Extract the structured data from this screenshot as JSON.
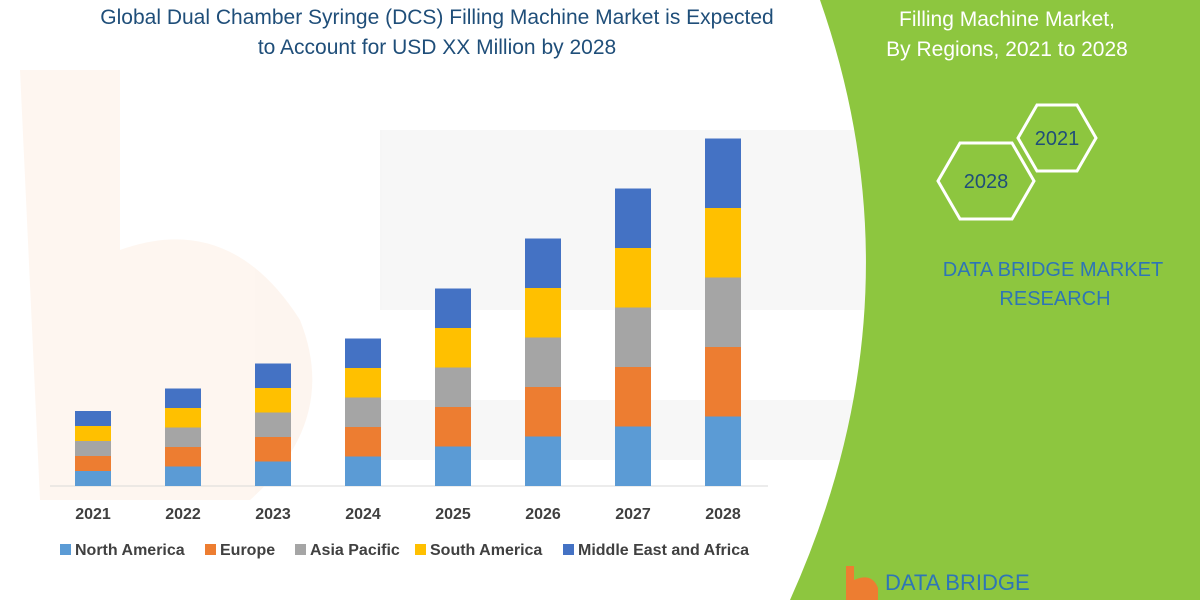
{
  "colors": {
    "north_america": "#5B9BD5",
    "europe": "#ED7D31",
    "asia_pacific": "#A5A5A5",
    "south_america": "#FFC000",
    "middle_east_africa": "#4472C4",
    "side_panel": "#8DC63F",
    "title_text": "#1F4E79",
    "brand_text": "#2E75B6"
  },
  "brand": {
    "logo_text": "DATA BRIDGE"
  },
  "side_panel": {
    "title_lines": [
      "Filling Machine Market,",
      "By Regions, 2021 to 2028"
    ],
    "hex_year_top": "2021",
    "hex_year_bottom": "2028",
    "company_line1": "DATA BRIDGE MARKET",
    "company_line2": "RESEARCH"
  },
  "chart_data": {
    "type": "bar",
    "stacked": true,
    "title": "Global Dual Chamber Syringe (DCS) Filling Machine Market is Expected to Account for USD XX Million by 2028",
    "title_lines": [
      "Global Dual Chamber Syringe (DCS) Filling Machine Market is Expected",
      "to Account for USD XX Million by 2028"
    ],
    "categories": [
      "2021",
      "2022",
      "2023",
      "2024",
      "2025",
      "2026",
      "2027",
      "2028"
    ],
    "series": [
      {
        "name": "North America",
        "color": "#5B9BD5",
        "values": [
          15,
          19.5,
          24.5,
          29.5,
          39.5,
          49.5,
          59.5,
          69.5
        ]
      },
      {
        "name": "Europe",
        "color": "#ED7D31",
        "values": [
          15,
          19.5,
          24.5,
          29.5,
          39.5,
          49.5,
          59.5,
          69.5
        ]
      },
      {
        "name": "Asia Pacific",
        "color": "#A5A5A5",
        "values": [
          15,
          19.5,
          24.5,
          29.5,
          39.5,
          49.5,
          59.5,
          69.5
        ]
      },
      {
        "name": "South America",
        "color": "#FFC000",
        "values": [
          15,
          19.5,
          24.5,
          29.5,
          39.5,
          49.5,
          59.5,
          69.5
        ]
      },
      {
        "name": "Middle East and Africa",
        "color": "#4472C4",
        "values": [
          15,
          19.5,
          24.5,
          29.5,
          39.5,
          49.5,
          59.5,
          69.5
        ]
      }
    ],
    "ylim": [
      0,
      350
    ],
    "grid": false,
    "legend_position": "bottom"
  }
}
